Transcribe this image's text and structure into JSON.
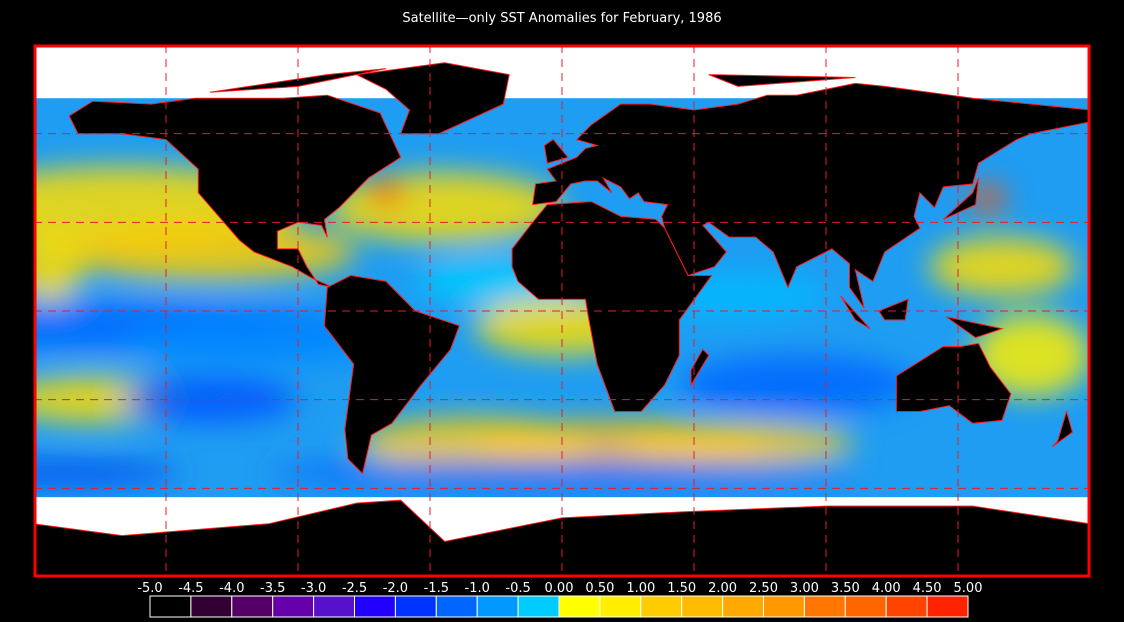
{
  "title": "Satellite—only SST Anomalies for February, 1986",
  "colorbar": {
    "ticks": [
      {
        "value": -5,
        "label": "-5.0"
      },
      -4.5,
      {
        "value": -4,
        "label": "-4.0"
      },
      -3.5,
      {
        "value": -3,
        "label": "-3.0"
      },
      -2.5,
      {
        "value": -2,
        "label": "-2.0"
      },
      -1.5,
      {
        "value": -1,
        "label": "-1.0"
      },
      -0.5,
      {
        "value": 0,
        "label": "0.00"
      },
      {
        "value": 0.5,
        "label": "0.50"
      },
      {
        "value": 1,
        "label": "1.00"
      },
      {
        "value": 1.5,
        "label": "1.50"
      },
      {
        "value": 2,
        "label": "2.00"
      },
      {
        "value": 2.5,
        "label": "2.50"
      },
      {
        "value": 3,
        "label": "3.00"
      },
      {
        "value": 3.5,
        "label": "3.50"
      },
      {
        "value": 4,
        "label": "4.00"
      },
      {
        "value": 4.5,
        "label": "4.50"
      },
      {
        "value": 5,
        "label": "5.00"
      }
    ],
    "colors": [
      "#000000",
      "#330033",
      "#550066",
      "#6600aa",
      "#5511cc",
      "#2200ff",
      "#0033ff",
      "#0066ff",
      "#0099ff",
      "#00ccff",
      "#ffff00",
      "#ffee00",
      "#ffcc00",
      "#ffbb00",
      "#ffaa00",
      "#ff9900",
      "#ff7700",
      "#ff6600",
      "#ff4400",
      "#ff2200"
    ]
  }
}
